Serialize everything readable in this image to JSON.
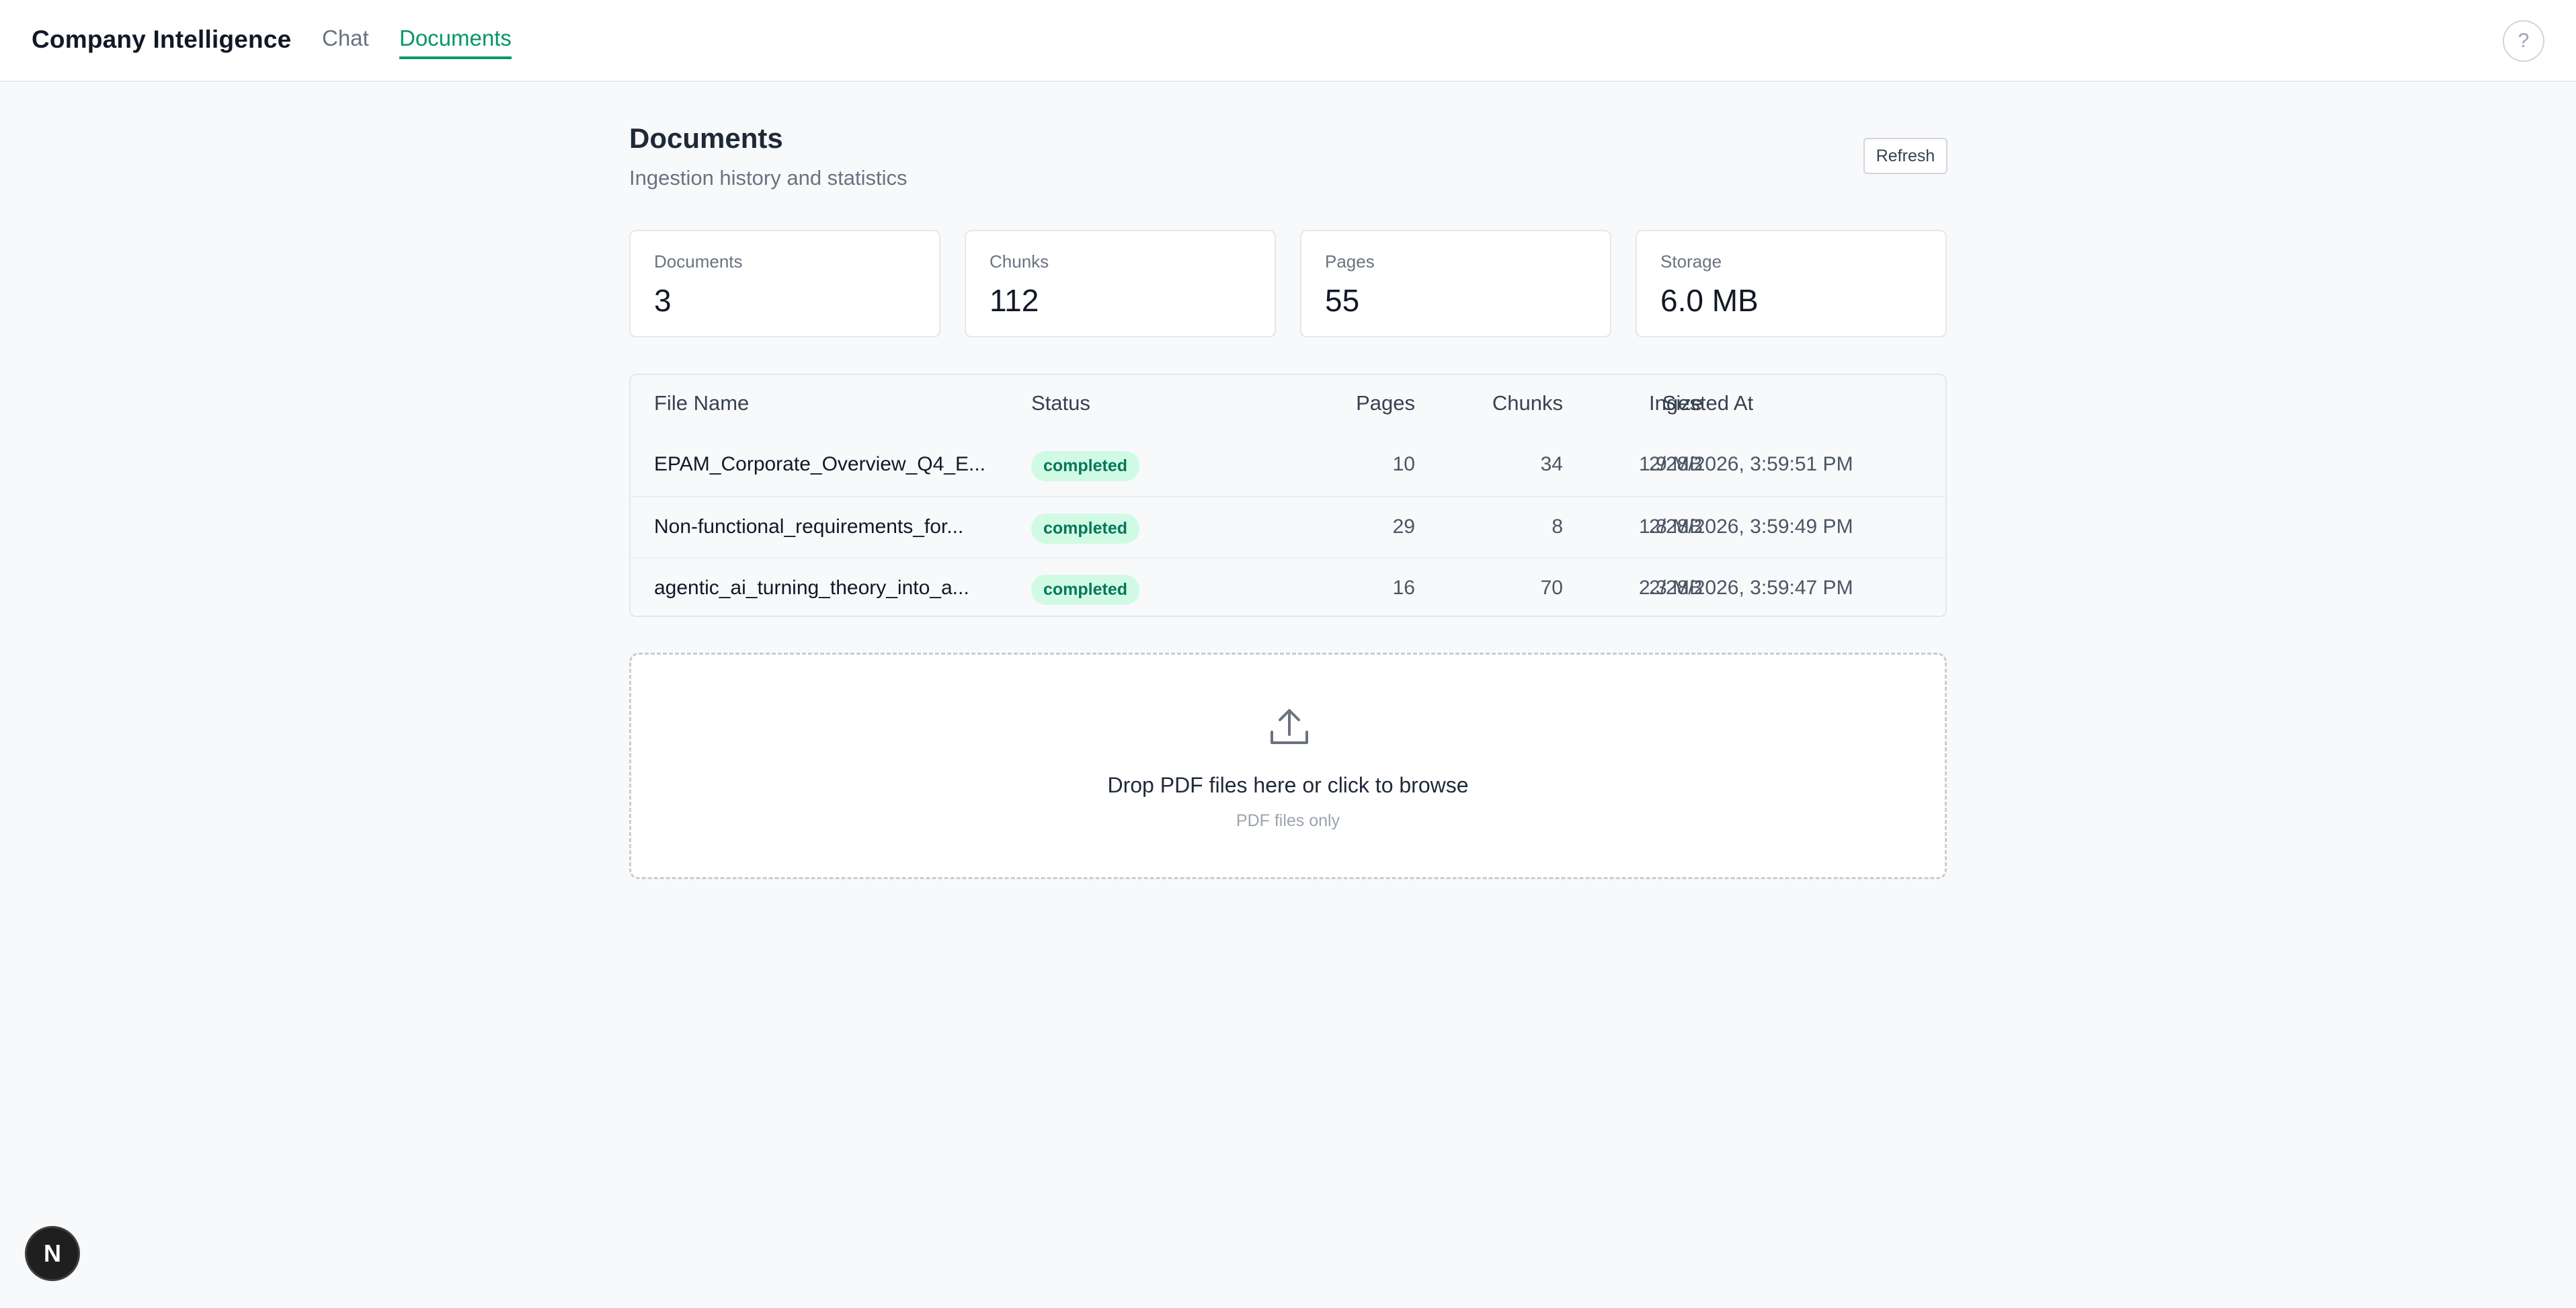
{
  "header": {
    "brand": "Company Intelligence",
    "tabs": [
      {
        "label": "Chat",
        "active": false
      },
      {
        "label": "Documents",
        "active": true
      }
    ],
    "help_label": "?"
  },
  "page": {
    "title": "Documents",
    "subtitle": "Ingestion history and statistics",
    "refresh_label": "Refresh"
  },
  "stats": [
    {
      "label": "Documents",
      "value": "3"
    },
    {
      "label": "Chunks",
      "value": "112"
    },
    {
      "label": "Pages",
      "value": "55"
    },
    {
      "label": "Storage",
      "value": "6.0 MB"
    }
  ],
  "table": {
    "columns": [
      "File Name",
      "Status",
      "Pages",
      "Chunks",
      "Size",
      "Ingested At"
    ],
    "rows": [
      {
        "file_name": "EPAM_Corporate_Overview_Q4_E...",
        "status": "completed",
        "pages": "10",
        "chunks": "34",
        "size": "1.9 MB",
        "ingested_at": "2/28/2026, 3:59:51 PM"
      },
      {
        "file_name": "Non-functional_requirements_for...",
        "status": "completed",
        "pages": "29",
        "chunks": "8",
        "size": "1.8 MB",
        "ingested_at": "2/28/2026, 3:59:49 PM"
      },
      {
        "file_name": "agentic_ai_turning_theory_into_a...",
        "status": "completed",
        "pages": "16",
        "chunks": "70",
        "size": "2.3 MB",
        "ingested_at": "2/28/2026, 3:59:47 PM"
      }
    ]
  },
  "dropzone": {
    "icon": "upload-icon",
    "title": "Drop PDF files here or click to browse",
    "subtitle": "PDF files only"
  },
  "floating": {
    "label": "N"
  },
  "colors": {
    "accent": "#059669",
    "badge_bg": "#d1fae5",
    "badge_text": "#047857"
  }
}
